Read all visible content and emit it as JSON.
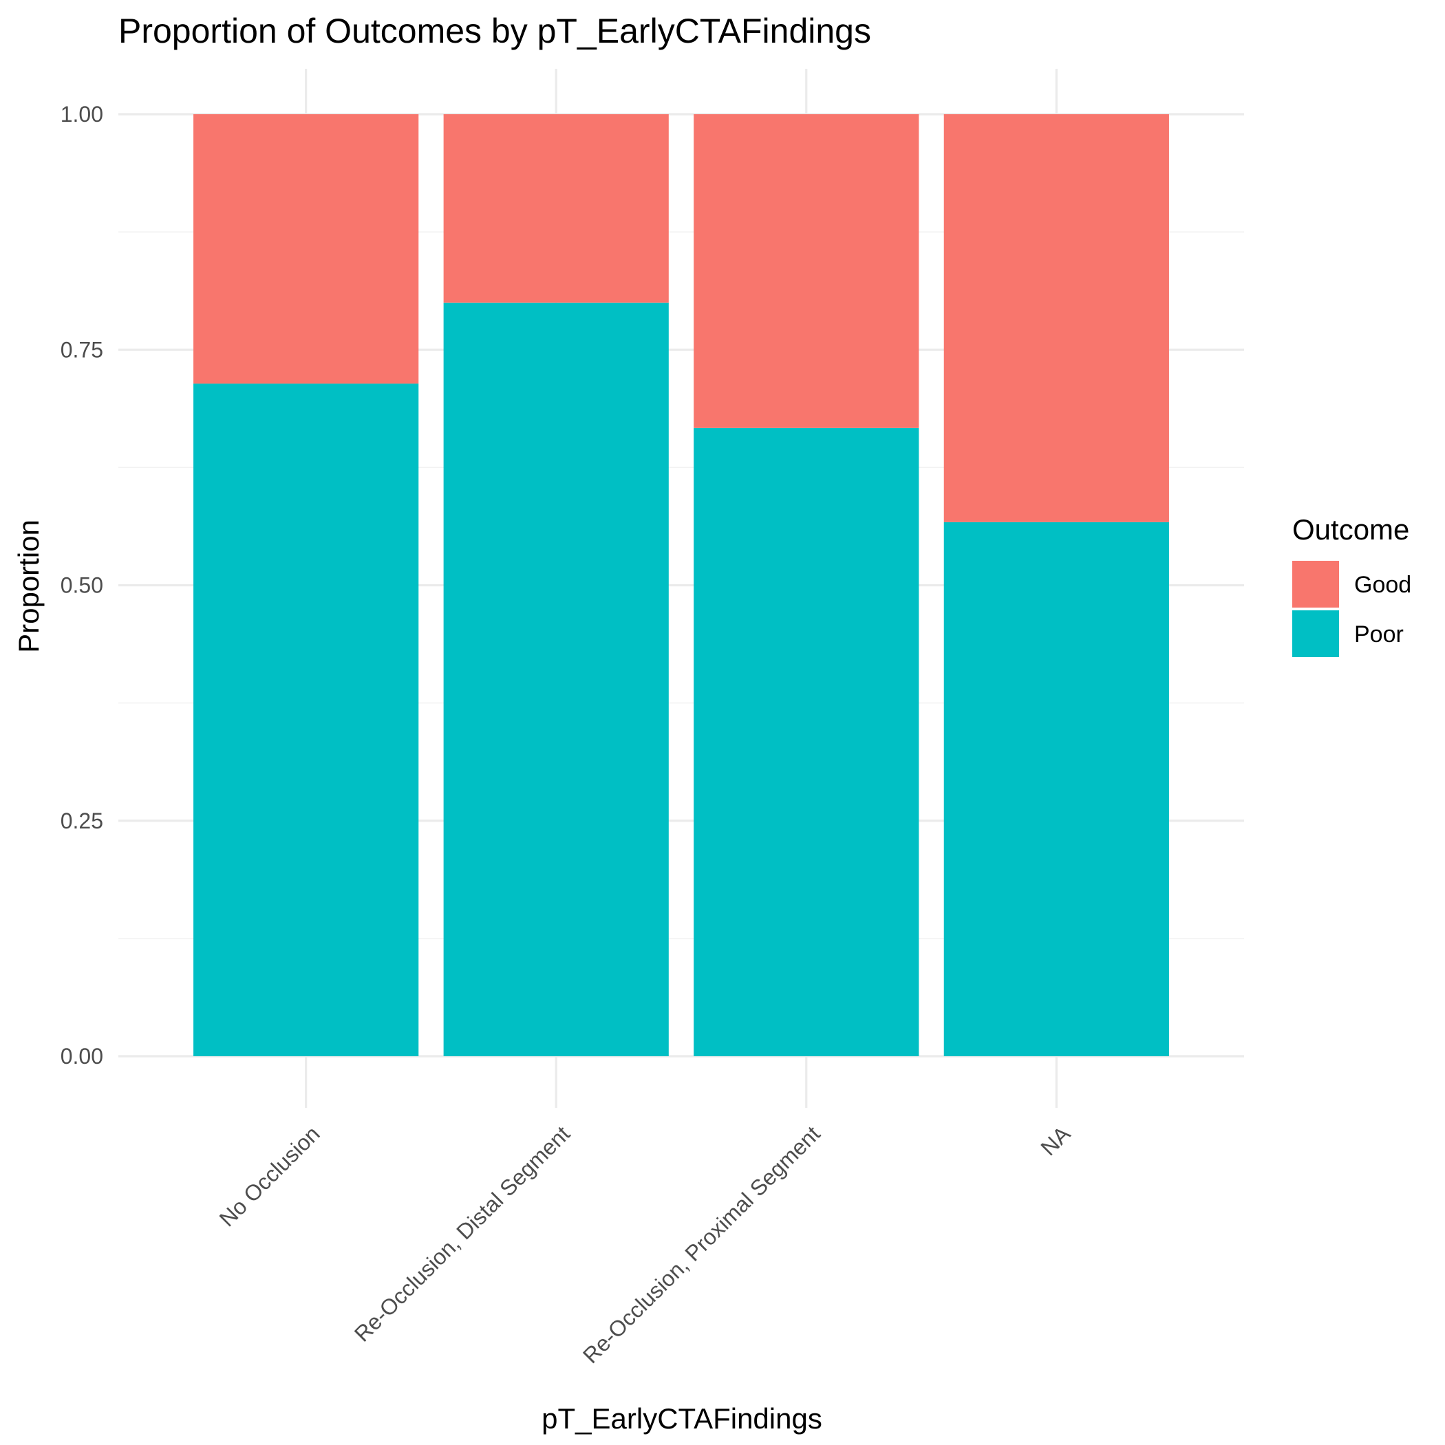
{
  "chart_data": {
    "type": "bar",
    "stacked": true,
    "title": "Proportion of Outcomes by pT_EarlyCTAFindings",
    "xlabel": "pT_EarlyCTAFindings",
    "ylabel": "Proportion",
    "categories": [
      "No Occlusion",
      "Re-Occlusion, Distal Segment",
      "Re-Occlusion, Proximal Segment",
      "NA"
    ],
    "series": [
      {
        "name": "Poor",
        "color": "#00BFC4",
        "values": [
          0.714,
          0.8,
          0.667,
          0.567
        ]
      },
      {
        "name": "Good",
        "color": "#F8766D",
        "values": [
          0.286,
          0.2,
          0.333,
          0.433
        ]
      }
    ],
    "ylim": [
      0,
      1
    ],
    "yticks": [
      "0.00",
      "0.25",
      "0.50",
      "0.75",
      "1.00"
    ],
    "grid": true,
    "legend": {
      "title": "Outcome",
      "position": "right",
      "items": [
        {
          "label": "Good",
          "color": "#F8766D"
        },
        {
          "label": "Poor",
          "color": "#00BFC4"
        }
      ]
    }
  }
}
